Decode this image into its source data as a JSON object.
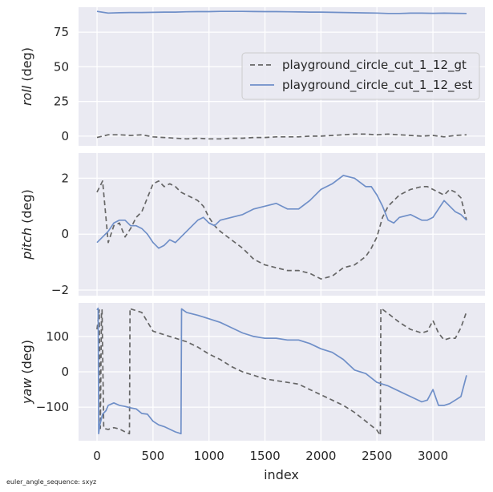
{
  "footnote": "euler_angle_sequence: sxyz",
  "legend": {
    "placement": "upper right of top subplot",
    "entries": [
      {
        "label": "playground_circle_cut_1_12_gt",
        "color": "#666666",
        "dash": "6,4"
      },
      {
        "label": "playground_circle_cut_1_12_est",
        "color": "#6f8fc8",
        "dash": ""
      }
    ]
  },
  "chart_data": [
    {
      "type": "line",
      "ylabel_italic": "roll",
      "ylabel_unit": " (deg)",
      "ylim": [
        -7,
        93
      ],
      "yticks": [
        0,
        25,
        50,
        75
      ],
      "xlim": [
        -165,
        3465
      ],
      "grid": true,
      "series": [
        {
          "name": "playground_circle_cut_1_12_gt",
          "x": [
            0,
            100,
            200,
            300,
            400,
            500,
            600,
            700,
            800,
            900,
            1000,
            1100,
            1200,
            1300,
            1400,
            1500,
            1600,
            1700,
            1800,
            1900,
            2000,
            2100,
            2200,
            2300,
            2400,
            2500,
            2600,
            2700,
            2800,
            2900,
            3000,
            3100,
            3200,
            3300
          ],
          "y": [
            -1,
            1,
            1,
            0.5,
            1,
            -0.5,
            -1,
            -1.5,
            -2,
            -1.5,
            -2,
            -2,
            -1.5,
            -1.5,
            -1,
            -1,
            -0.5,
            -0.5,
            -0.5,
            0,
            0,
            0.5,
            1,
            1.5,
            1.5,
            1,
            1.5,
            1,
            0.5,
            0,
            0.5,
            -0.5,
            0.5,
            1
          ]
        },
        {
          "name": "playground_circle_cut_1_12_est",
          "x": [
            0,
            100,
            200,
            300,
            400,
            500,
            600,
            700,
            800,
            900,
            1000,
            1100,
            1200,
            1300,
            1400,
            1500,
            1600,
            1700,
            1800,
            1900,
            2000,
            2100,
            2200,
            2300,
            2400,
            2500,
            2600,
            2700,
            2800,
            2900,
            3000,
            3100,
            3200,
            3300
          ],
          "y": [
            90,
            88.8,
            89,
            89.2,
            89.2,
            89.3,
            89.5,
            89.5,
            89.7,
            89.8,
            89.8,
            90,
            90,
            90,
            89.9,
            89.8,
            89.8,
            89.7,
            89.6,
            89.5,
            89.5,
            89.3,
            89.2,
            89.0,
            88.9,
            88.8,
            88.5,
            88.5,
            88.7,
            88.7,
            88.6,
            88.7,
            88.6,
            88.5
          ]
        }
      ]
    },
    {
      "type": "line",
      "ylabel_italic": "pitch",
      "ylabel_unit": " (deg)",
      "ylim": [
        -2.2,
        2.9
      ],
      "yticks": [
        -2,
        0,
        2
      ],
      "ytick_labels": [
        "−2",
        "0",
        "2"
      ],
      "xlim": [
        -165,
        3465
      ],
      "grid": true,
      "series": [
        {
          "name": "playground_circle_cut_1_12_gt",
          "x": [
            0,
            50,
            100,
            150,
            200,
            250,
            300,
            350,
            400,
            450,
            500,
            550,
            600,
            650,
            700,
            750,
            800,
            850,
            900,
            950,
            1000,
            1050,
            1100,
            1200,
            1300,
            1400,
            1500,
            1600,
            1700,
            1800,
            1900,
            2000,
            2100,
            2200,
            2300,
            2400,
            2450,
            2500,
            2550,
            2600,
            2650,
            2700,
            2800,
            2900,
            2950,
            3000,
            3050,
            3100,
            3150,
            3200,
            3250,
            3300
          ],
          "y": [
            1.5,
            1.9,
            -0.3,
            0.3,
            0.4,
            -0.1,
            0.2,
            0.6,
            0.8,
            1.3,
            1.8,
            1.9,
            1.7,
            1.8,
            1.7,
            1.5,
            1.4,
            1.3,
            1.2,
            1.0,
            0.6,
            0.3,
            0.1,
            -0.2,
            -0.5,
            -0.9,
            -1.1,
            -1.2,
            -1.3,
            -1.3,
            -1.4,
            -1.6,
            -1.5,
            -1.2,
            -1.1,
            -0.8,
            -0.5,
            -0.1,
            0.6,
            1.0,
            1.2,
            1.4,
            1.6,
            1.7,
            1.7,
            1.6,
            1.5,
            1.4,
            1.6,
            1.5,
            1.3,
            0.5
          ]
        },
        {
          "name": "playground_circle_cut_1_12_est",
          "x": [
            0,
            50,
            100,
            150,
            200,
            250,
            300,
            350,
            400,
            450,
            500,
            550,
            600,
            650,
            700,
            750,
            800,
            850,
            900,
            950,
            1000,
            1050,
            1100,
            1200,
            1300,
            1400,
            1500,
            1600,
            1700,
            1800,
            1900,
            2000,
            2100,
            2200,
            2300,
            2400,
            2450,
            2500,
            2550,
            2600,
            2650,
            2700,
            2800,
            2900,
            2950,
            3000,
            3050,
            3100,
            3150,
            3200,
            3250,
            3300
          ],
          "y": [
            -0.3,
            -0.1,
            0.1,
            0.4,
            0.5,
            0.5,
            0.3,
            0.3,
            0.2,
            0.0,
            -0.3,
            -0.5,
            -0.4,
            -0.2,
            -0.3,
            -0.1,
            0.1,
            0.3,
            0.5,
            0.6,
            0.4,
            0.3,
            0.5,
            0.6,
            0.7,
            0.9,
            1.0,
            1.1,
            0.9,
            0.9,
            1.2,
            1.6,
            1.8,
            2.1,
            2.0,
            1.7,
            1.7,
            1.4,
            1.0,
            0.5,
            0.4,
            0.6,
            0.7,
            0.5,
            0.5,
            0.6,
            0.9,
            1.2,
            1.0,
            0.8,
            0.7,
            0.5
          ]
        }
      ]
    },
    {
      "type": "line",
      "ylabel_italic": "yaw",
      "ylabel_unit": " (deg)",
      "xlabel": "index",
      "ylim": [
        -195,
        195
      ],
      "yticks": [
        -100,
        0,
        100
      ],
      "ytick_labels": [
        "−100",
        "0",
        "100"
      ],
      "xlim": [
        -165,
        3465
      ],
      "xticks": [
        0,
        500,
        1000,
        1500,
        2000,
        2500,
        3000
      ],
      "grid": true,
      "series": [
        {
          "name": "playground_circle_cut_1_12_gt",
          "x": [
            0,
            20,
            30,
            40,
            45,
            60,
            100,
            150,
            200,
            250,
            290,
            295,
            300,
            400,
            500,
            600,
            700,
            800,
            900,
            1000,
            1100,
            1200,
            1300,
            1400,
            1500,
            1600,
            1700,
            1800,
            1900,
            2000,
            2100,
            2200,
            2300,
            2400,
            2500,
            2530,
            2535,
            2600,
            2700,
            2800,
            2900,
            2950,
            3000,
            3050,
            3100,
            3150,
            3200,
            3250,
            3300
          ],
          "y": [
            120,
            175,
            -160,
            172,
            175,
            -160,
            -163,
            -158,
            -162,
            -170,
            -175,
            180,
            178,
            168,
            115,
            105,
            95,
            85,
            70,
            50,
            35,
            15,
            0,
            -10,
            -20,
            -25,
            -30,
            -35,
            -50,
            -65,
            -80,
            -95,
            -115,
            -140,
            -165,
            -180,
            180,
            165,
            140,
            120,
            110,
            115,
            145,
            110,
            90,
            95,
            95,
            125,
            170
          ]
        },
        {
          "name": "playground_circle_cut_1_12_est",
          "x": [
            0,
            10,
            15,
            25,
            50,
            80,
            100,
            150,
            200,
            250,
            300,
            350,
            400,
            450,
            500,
            550,
            600,
            700,
            750,
            755,
            800,
            900,
            1000,
            1100,
            1200,
            1300,
            1400,
            1500,
            1600,
            1700,
            1800,
            1900,
            2000,
            2100,
            2200,
            2300,
            2400,
            2500,
            2600,
            2700,
            2800,
            2900,
            2950,
            3000,
            3050,
            3100,
            3150,
            3200,
            3250,
            3300
          ],
          "y": [
            175,
            180,
            -175,
            -150,
            -120,
            -110,
            -95,
            -88,
            -95,
            -98,
            -102,
            -105,
            -118,
            -120,
            -140,
            -150,
            -155,
            -170,
            -175,
            178,
            168,
            160,
            150,
            140,
            125,
            110,
            100,
            95,
            95,
            90,
            90,
            80,
            65,
            55,
            35,
            5,
            -5,
            -30,
            -40,
            -55,
            -70,
            -85,
            -80,
            -50,
            -95,
            -95,
            -90,
            -80,
            -70,
            -10
          ]
        }
      ]
    }
  ]
}
